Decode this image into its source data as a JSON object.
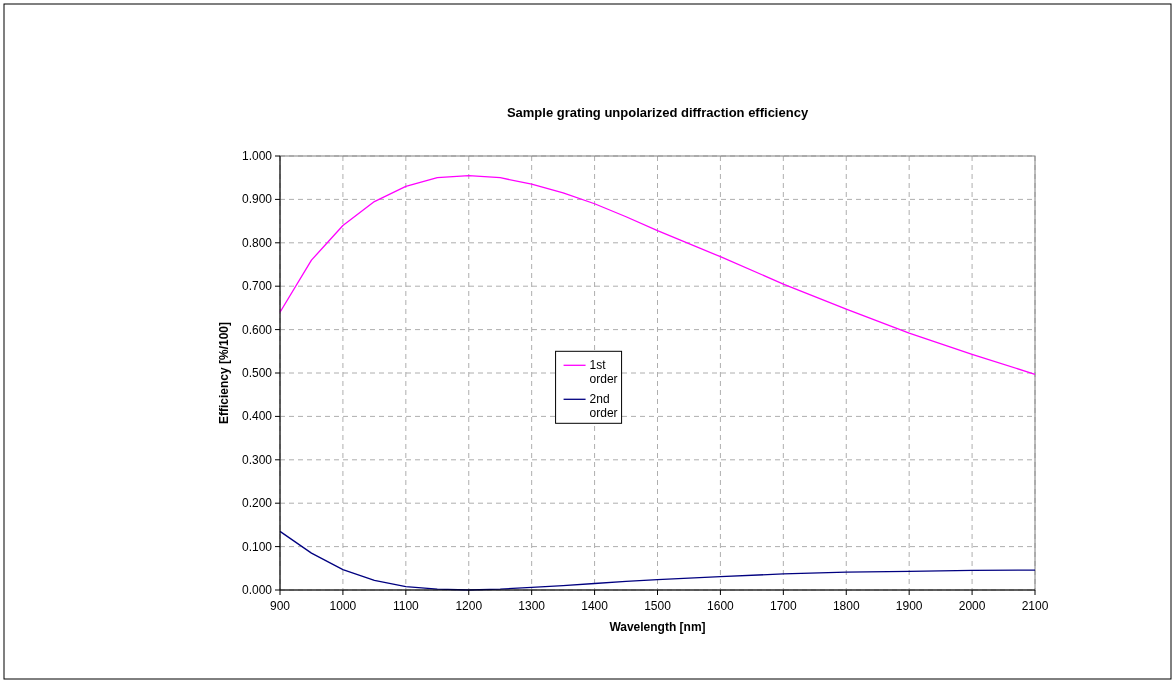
{
  "chart_data": {
    "type": "line",
    "title": "Sample grating unpolarized diffraction efficiency",
    "xlabel": "Wavelength [nm]",
    "ylabel": "Efficiency [%/100]",
    "x": [
      900,
      950,
      1000,
      1050,
      1100,
      1150,
      1200,
      1250,
      1300,
      1350,
      1400,
      1450,
      1500,
      1600,
      1700,
      1800,
      1900,
      2000,
      2100
    ],
    "series": [
      {
        "name": "1st order",
        "color": "#ff00ff",
        "values": [
          0.64,
          0.76,
          0.84,
          0.895,
          0.93,
          0.95,
          0.955,
          0.95,
          0.935,
          0.915,
          0.89,
          0.86,
          0.828,
          0.768,
          0.705,
          0.647,
          0.592,
          0.543,
          0.497
        ]
      },
      {
        "name": "2nd order",
        "color": "#000080",
        "values": [
          0.135,
          0.085,
          0.047,
          0.022,
          0.008,
          0.002,
          0.0,
          0.002,
          0.006,
          0.01,
          0.015,
          0.02,
          0.024,
          0.031,
          0.037,
          0.041,
          0.043,
          0.045,
          0.046
        ]
      }
    ],
    "xlim": [
      900,
      2100
    ],
    "xticks": [
      900,
      1000,
      1100,
      1200,
      1300,
      1400,
      1500,
      1600,
      1700,
      1800,
      1900,
      2000,
      2100
    ],
    "ylim": [
      0,
      1
    ],
    "yticks": [
      {
        "value": 0,
        "label": "0.000"
      },
      {
        "value": 0.1,
        "label": "0.100"
      },
      {
        "value": 0.2,
        "label": "0.200"
      },
      {
        "value": 0.3,
        "label": "0.300"
      },
      {
        "value": 0.4,
        "label": "0.400"
      },
      {
        "value": 0.5,
        "label": "0.500"
      },
      {
        "value": 0.6,
        "label": "0.600"
      },
      {
        "value": 0.7,
        "label": "0.700"
      },
      {
        "value": 0.8,
        "label": "0.800"
      },
      {
        "value": 0.9,
        "label": "0.900"
      },
      {
        "value": 1,
        "label": "1.000"
      }
    ],
    "grid": true,
    "legend": "center",
    "marker": "none",
    "line_style": "solid"
  }
}
